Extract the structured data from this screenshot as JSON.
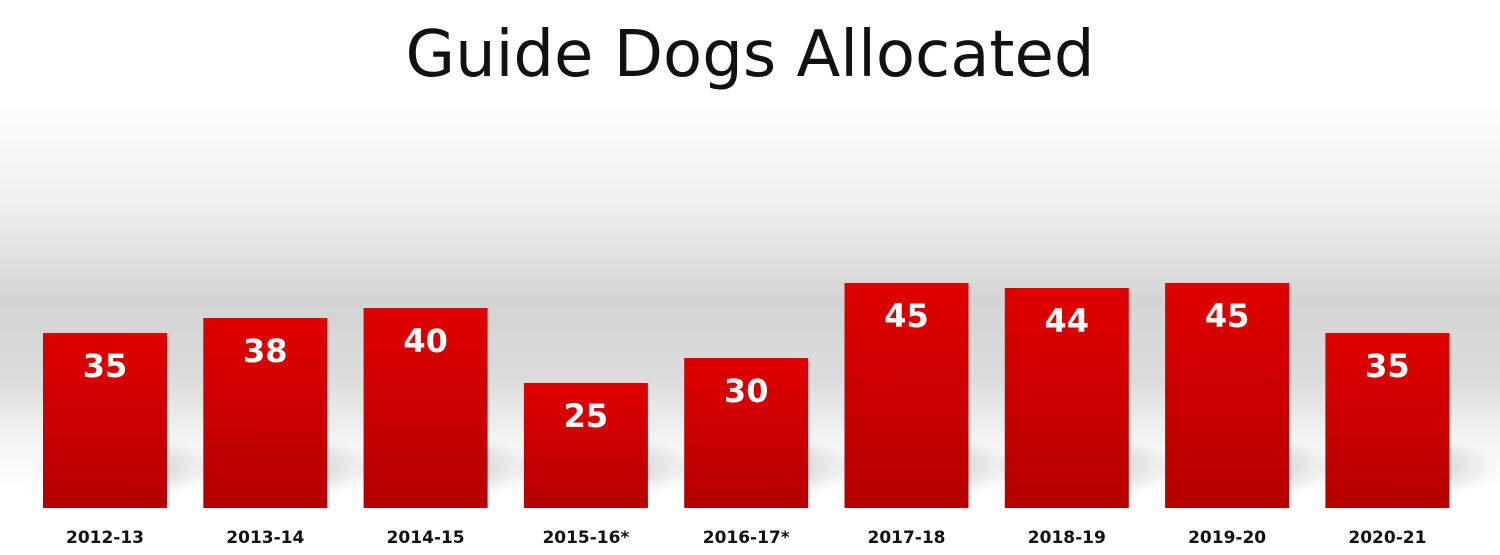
{
  "chart_data": {
    "type": "bar",
    "title": "Guide Dogs Allocated",
    "xlabel": "",
    "ylabel": "",
    "categories": [
      "2012-13",
      "2013-14",
      "2014-15",
      "2015-16*",
      "2016-17*",
      "2017-18",
      "2018-19",
      "2019-20",
      "2020-21"
    ],
    "values": [
      35,
      38,
      40,
      25,
      30,
      45,
      44,
      45,
      35
    ],
    "data_labels": [
      "35",
      "38",
      "40",
      "25",
      "30",
      "45",
      "44",
      "45",
      "35"
    ],
    "ylim": [
      0,
      50
    ],
    "grid": false,
    "legend": "none",
    "bar_color": "#d40000",
    "bar_color_dark": "#b80000",
    "label_color": "#ffffff"
  }
}
